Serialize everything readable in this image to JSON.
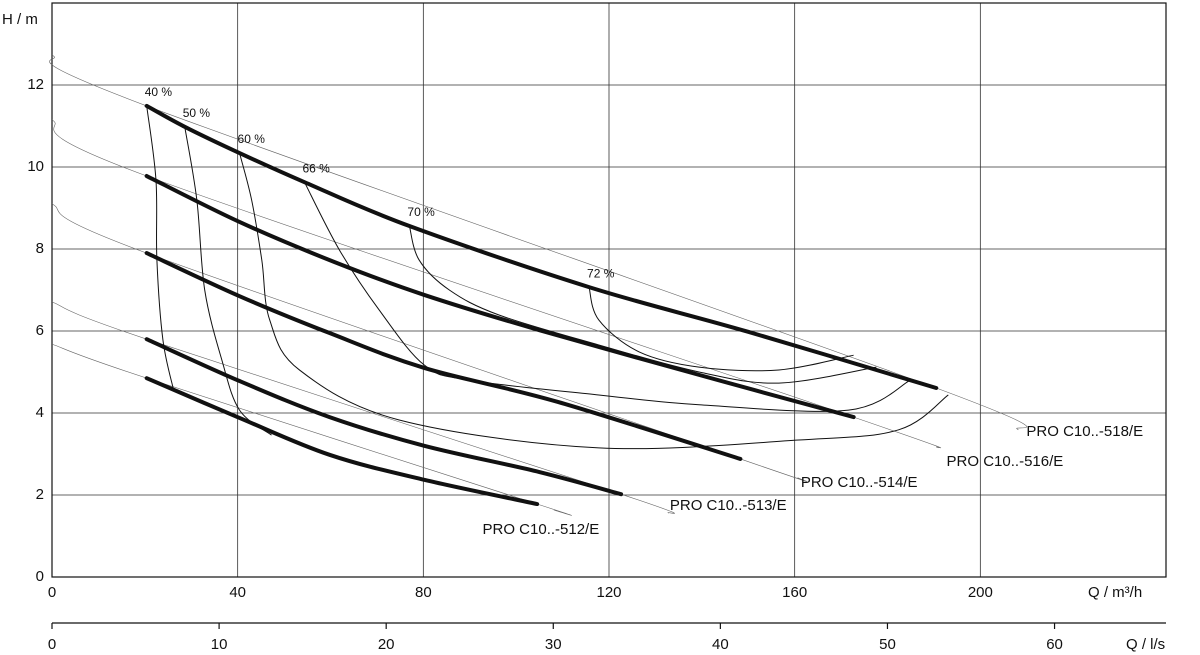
{
  "chart_data": {
    "type": "line",
    "y_label": "H / m",
    "x_label": "Q / m³/h",
    "x2_label": "Q / l/s",
    "xlim": [
      0,
      240
    ],
    "xticks": [
      0,
      40,
      80,
      120,
      160,
      200
    ],
    "x2lim": [
      0,
      66.67
    ],
    "x2ticks": [
      0,
      10,
      20,
      30,
      40,
      50,
      60
    ],
    "ylim": [
      0,
      14
    ],
    "yticks": [
      0,
      2,
      4,
      6,
      8,
      10,
      12
    ],
    "grid": true,
    "color": "#111111",
    "series": [
      {
        "name": "PRO C10..-518/E",
        "x": [
          20.4,
          28.6,
          40.4,
          54.4,
          77,
          115.7,
          150,
          190.5
        ],
        "values": [
          11.49,
          10.98,
          10.34,
          9.63,
          8.56,
          7.07,
          5.98,
          4.61
        ],
        "thin_x": [
          0,
          20.4,
          190.5,
          208.2
        ],
        "thin_values": [
          12.73,
          11.49,
          4.61,
          3.59
        ]
      },
      {
        "name": "PRO C10..-516/E",
        "x": [
          20.4,
          40.4,
          60.9,
          80.2,
          105,
          139.4,
          172.7
        ],
        "values": [
          9.78,
          8.66,
          7.68,
          6.88,
          6.02,
          4.93,
          3.9
        ],
        "thin_x": [
          0,
          20.4,
          172.7,
          191
        ],
        "thin_values": [
          11.15,
          9.78,
          3.9,
          3.15
        ]
      },
      {
        "name": "PRO C10..-514/E",
        "x": [
          20.4,
          40.4,
          59.8,
          80.2,
          109,
          148.3
        ],
        "values": [
          7.9,
          6.85,
          5.95,
          5.1,
          4.27,
          2.88
        ],
        "thin_x": [
          0,
          20.4,
          148.3,
          160.9
        ],
        "thin_values": [
          9.1,
          7.9,
          2.88,
          2.41
        ]
      },
      {
        "name": "PRO C10..-513/E",
        "x": [
          20.4,
          40.4,
          59.8,
          80.2,
          105,
          122.6
        ],
        "values": [
          5.8,
          4.78,
          3.9,
          3.2,
          2.56,
          2.02
        ],
        "thin_x": [
          0,
          20.4,
          122.6,
          132.9
        ],
        "thin_values": [
          6.71,
          5.8,
          2.02,
          1.56
        ]
      },
      {
        "name": "PRO C10..-512/E",
        "x": [
          20.4,
          40.4,
          59.8,
          80.2,
          104.5
        ],
        "values": [
          4.85,
          3.88,
          2.98,
          2.37,
          1.78
        ],
        "thin_x": [
          0,
          20.4,
          104.5,
          108.2
        ],
        "thin_values": [
          5.68,
          4.85,
          1.78,
          1.63
        ]
      }
    ],
    "efficiency": [
      {
        "name": "40 %",
        "x": [
          20.4,
          22.4,
          22.6,
          23.9,
          26.2
        ],
        "values": [
          11.49,
          9.68,
          7.73,
          5.78,
          4.56
        ]
      },
      {
        "name": "50 %",
        "x": [
          28.6,
          31.2,
          32.9,
          36.6,
          40.4,
          47.3
        ],
        "values": [
          10.98,
          9.2,
          7.0,
          5.29,
          4.07,
          3.46
        ]
      },
      {
        "name": "60 %",
        "x": [
          40.4,
          43.0,
          45.2,
          46.9,
          53.3,
          74.8,
          117.8,
          160.9,
          182.4,
          193.1
        ],
        "values": [
          10.34,
          9.2,
          7.73,
          6.27,
          5.05,
          3.83,
          3.15,
          3.34,
          3.59,
          4.44
        ]
      },
      {
        "name": "66 %",
        "x": [
          54.4,
          61.9,
          70.5,
          80.2,
          89.9,
          117.8,
          139.4,
          171.6,
          184.9
        ],
        "values": [
          9.63,
          7.98,
          6.51,
          5.17,
          4.8,
          4.44,
          4.2,
          4.07,
          4.8
        ]
      },
      {
        "name": "70 %",
        "x": [
          77,
          79.1,
          85.6,
          96.3,
          117.8,
          139.4,
          156.6,
          177.6
        ],
        "values": [
          8.56,
          7.73,
          7.0,
          6.39,
          5.66,
          5.0,
          4.73,
          5.12
        ]
      },
      {
        "name": "72 %",
        "x": [
          115.7,
          117.8,
          126.5,
          139.4,
          156.6,
          172.7
        ],
        "values": [
          7.07,
          6.27,
          5.49,
          5.12,
          5.05,
          5.41
        ]
      }
    ]
  }
}
